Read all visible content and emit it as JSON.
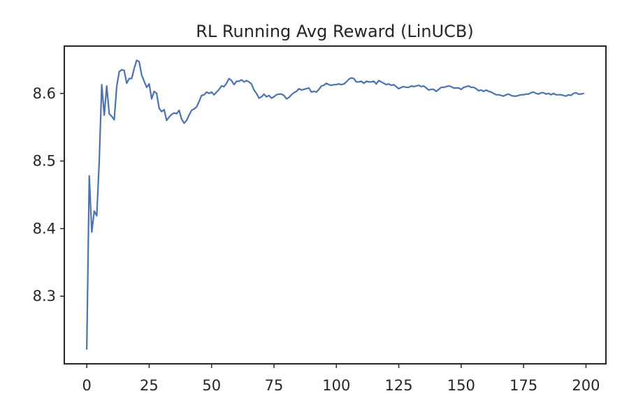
{
  "chart_data": {
    "type": "line",
    "title": "RL Running Avg Reward (LinUCB)",
    "xlabel": "",
    "ylabel": "",
    "xlim": [
      -9,
      208
    ],
    "ylim": [
      8.2,
      8.67
    ],
    "xticks": [
      0,
      25,
      50,
      75,
      100,
      125,
      150,
      175,
      200
    ],
    "yticks": [
      8.3,
      8.4,
      8.5,
      8.6
    ],
    "yticks_labels": [
      "8.3",
      "8.4",
      "8.5",
      "8.6"
    ],
    "grid": false,
    "legend": "none",
    "line_color": "#4c72b0",
    "series": [
      {
        "points": [
          [
            0,
            8.222
          ],
          [
            1,
            8.478
          ],
          [
            2,
            8.395
          ],
          [
            3,
            8.426
          ],
          [
            4,
            8.419
          ],
          [
            5,
            8.5
          ],
          [
            6,
            8.613
          ],
          [
            7,
            8.568
          ],
          [
            8,
            8.611
          ],
          [
            9,
            8.57
          ],
          [
            10,
            8.566
          ],
          [
            11,
            8.561
          ],
          [
            12,
            8.61
          ],
          [
            13,
            8.632
          ],
          [
            14,
            8.635
          ],
          [
            15,
            8.634
          ],
          [
            16,
            8.615
          ],
          [
            17,
            8.622
          ],
          [
            18,
            8.622
          ],
          [
            19,
            8.637
          ],
          [
            20,
            8.649
          ],
          [
            21,
            8.647
          ],
          [
            22,
            8.627
          ],
          [
            23,
            8.618
          ],
          [
            24,
            8.609
          ],
          [
            25,
            8.614
          ],
          [
            26,
            8.592
          ],
          [
            27,
            8.603
          ],
          [
            28,
            8.6
          ],
          [
            29,
            8.578
          ],
          [
            30,
            8.573
          ],
          [
            31,
            8.576
          ],
          [
            32,
            8.56
          ],
          [
            33,
            8.565
          ],
          [
            34,
            8.569
          ],
          [
            35,
            8.571
          ],
          [
            36,
            8.57
          ],
          [
            37,
            8.575
          ],
          [
            38,
            8.562
          ],
          [
            39,
            8.556
          ],
          [
            40,
            8.56
          ],
          [
            41,
            8.568
          ],
          [
            42,
            8.575
          ],
          [
            43,
            8.577
          ],
          [
            44,
            8.58
          ],
          [
            45,
            8.588
          ],
          [
            46,
            8.597
          ],
          [
            47,
            8.598
          ],
          [
            48,
            8.602
          ],
          [
            49,
            8.6
          ],
          [
            50,
            8.602
          ],
          [
            51,
            8.598
          ],
          [
            52,
            8.602
          ],
          [
            53,
            8.606
          ],
          [
            54,
            8.611
          ],
          [
            55,
            8.61
          ],
          [
            56,
            8.615
          ],
          [
            57,
            8.622
          ],
          [
            58,
            8.619
          ],
          [
            59,
            8.613
          ],
          [
            60,
            8.618
          ],
          [
            61,
            8.618
          ],
          [
            62,
            8.62
          ],
          [
            63,
            8.617
          ],
          [
            64,
            8.619
          ],
          [
            65,
            8.617
          ],
          [
            66,
            8.614
          ],
          [
            67,
            8.605
          ],
          [
            68,
            8.6
          ],
          [
            69,
            8.593
          ],
          [
            70,
            8.595
          ],
          [
            71,
            8.599
          ],
          [
            72,
            8.595
          ],
          [
            73,
            8.597
          ],
          [
            74,
            8.593
          ],
          [
            75,
            8.595
          ],
          [
            76,
            8.598
          ],
          [
            77,
            8.599
          ],
          [
            78,
            8.599
          ],
          [
            79,
            8.597
          ],
          [
            80,
            8.592
          ],
          [
            81,
            8.594
          ],
          [
            82,
            8.598
          ],
          [
            83,
            8.601
          ],
          [
            84,
            8.603
          ],
          [
            85,
            8.607
          ],
          [
            86,
            8.605
          ],
          [
            87,
            8.606
          ],
          [
            88,
            8.607
          ],
          [
            89,
            8.608
          ],
          [
            90,
            8.602
          ],
          [
            91,
            8.603
          ],
          [
            92,
            8.602
          ],
          [
            93,
            8.606
          ],
          [
            94,
            8.611
          ],
          [
            95,
            8.612
          ],
          [
            96,
            8.615
          ],
          [
            97,
            8.613
          ],
          [
            98,
            8.612
          ],
          [
            99,
            8.613
          ],
          [
            100,
            8.613
          ],
          [
            101,
            8.614
          ],
          [
            102,
            8.613
          ],
          [
            103,
            8.614
          ],
          [
            104,
            8.617
          ],
          [
            105,
            8.621
          ],
          [
            106,
            8.623
          ],
          [
            107,
            8.622
          ],
          [
            108,
            8.617
          ],
          [
            109,
            8.617
          ],
          [
            110,
            8.618
          ],
          [
            111,
            8.615
          ],
          [
            112,
            8.618
          ],
          [
            113,
            8.617
          ],
          [
            114,
            8.617
          ],
          [
            115,
            8.618
          ],
          [
            116,
            8.614
          ],
          [
            117,
            8.619
          ],
          [
            118,
            8.617
          ],
          [
            119,
            8.615
          ],
          [
            120,
            8.613
          ],
          [
            121,
            8.614
          ],
          [
            122,
            8.612
          ],
          [
            123,
            8.613
          ],
          [
            124,
            8.61
          ],
          [
            125,
            8.607
          ],
          [
            126,
            8.609
          ],
          [
            127,
            8.61
          ],
          [
            128,
            8.609
          ],
          [
            129,
            8.609
          ],
          [
            130,
            8.611
          ],
          [
            131,
            8.61
          ],
          [
            132,
            8.611
          ],
          [
            133,
            8.612
          ],
          [
            134,
            8.61
          ],
          [
            135,
            8.611
          ],
          [
            136,
            8.608
          ],
          [
            137,
            8.605
          ],
          [
            138,
            8.606
          ],
          [
            139,
            8.606
          ],
          [
            140,
            8.603
          ],
          [
            141,
            8.606
          ],
          [
            142,
            8.609
          ],
          [
            143,
            8.609
          ],
          [
            144,
            8.61
          ],
          [
            145,
            8.611
          ],
          [
            146,
            8.61
          ],
          [
            147,
            8.608
          ],
          [
            148,
            8.608
          ],
          [
            149,
            8.608
          ],
          [
            150,
            8.606
          ],
          [
            151,
            8.609
          ],
          [
            152,
            8.61
          ],
          [
            153,
            8.611
          ],
          [
            154,
            8.609
          ],
          [
            155,
            8.609
          ],
          [
            156,
            8.607
          ],
          [
            157,
            8.604
          ],
          [
            158,
            8.605
          ],
          [
            159,
            8.603
          ],
          [
            160,
            8.605
          ],
          [
            161,
            8.603
          ],
          [
            162,
            8.602
          ],
          [
            163,
            8.6
          ],
          [
            164,
            8.598
          ],
          [
            165,
            8.598
          ],
          [
            166,
            8.597
          ],
          [
            167,
            8.596
          ],
          [
            168,
            8.598
          ],
          [
            169,
            8.599
          ],
          [
            170,
            8.597
          ],
          [
            171,
            8.596
          ],
          [
            172,
            8.596
          ],
          [
            173,
            8.597
          ],
          [
            174,
            8.598
          ],
          [
            175,
            8.598
          ],
          [
            176,
            8.599
          ],
          [
            177,
            8.599
          ],
          [
            178,
            8.601
          ],
          [
            179,
            8.602
          ],
          [
            180,
            8.6
          ],
          [
            181,
            8.599
          ],
          [
            182,
            8.601
          ],
          [
            183,
            8.601
          ],
          [
            184,
            8.599
          ],
          [
            185,
            8.6
          ],
          [
            186,
            8.598
          ],
          [
            187,
            8.6
          ],
          [
            188,
            8.598
          ],
          [
            189,
            8.598
          ],
          [
            190,
            8.598
          ],
          [
            191,
            8.597
          ],
          [
            192,
            8.596
          ],
          [
            193,
            8.598
          ],
          [
            194,
            8.597
          ],
          [
            195,
            8.6
          ],
          [
            196,
            8.601
          ],
          [
            197,
            8.599
          ],
          [
            198,
            8.599
          ],
          [
            199,
            8.6
          ]
        ]
      }
    ]
  }
}
